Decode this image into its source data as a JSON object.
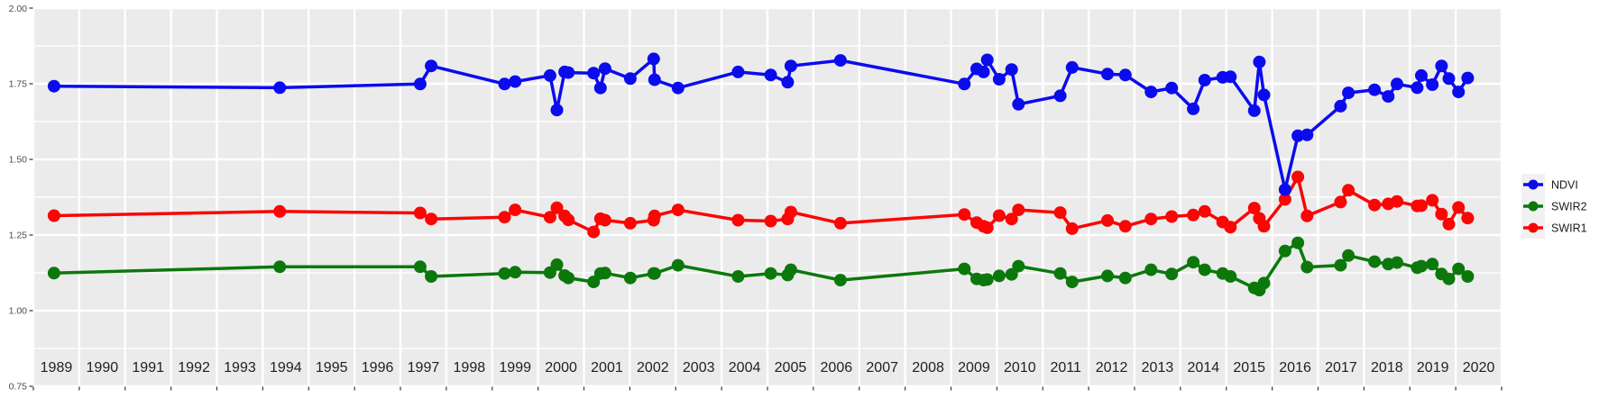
{
  "figure": {
    "background": "#ffffff",
    "panel_background": "#ebebeb",
    "grid_major_color": "#ffffff",
    "grid_minor_color": "#ffffff",
    "tick_color": "#333333",
    "axis_text_color": "#4d4d4d",
    "year_text_color": "#1f1f1f",
    "legend_key_background": "#f1f1f1",
    "legend_text_color": "#1a1a1a"
  },
  "axes": {
    "y_tick_labels": [
      "0.75",
      "1.00",
      "1.25",
      "1.50",
      "1.75",
      "2.00"
    ],
    "y_tick_values": [
      0.75,
      1.0,
      1.25,
      1.5,
      1.75,
      2.0
    ],
    "y_minor_values": [
      0.875,
      1.125,
      1.375,
      1.625,
      1.875
    ],
    "x_year_labels": [
      "1989",
      "1990",
      "1991",
      "1992",
      "1993",
      "1994",
      "1995",
      "1996",
      "1997",
      "1998",
      "1999",
      "2000",
      "2001",
      "2002",
      "2003",
      "2004",
      "2005",
      "2006",
      "2007",
      "2008",
      "2009",
      "2010",
      "2011",
      "2012",
      "2013",
      "2014",
      "2015",
      "2016",
      "2017",
      "2018",
      "2019",
      "2020"
    ]
  },
  "legend": {
    "items": [
      {
        "label": "NDVI",
        "color": "#0b0bef"
      },
      {
        "label": "SWIR2",
        "color": "#0c780c"
      },
      {
        "label": "SWIR1",
        "color": "#fb0505"
      }
    ]
  },
  "chart_data": {
    "type": "line",
    "title": "",
    "xlabel": "",
    "ylabel": "",
    "xlim": [
      1989,
      2021
    ],
    "ylim": [
      0.75,
      2.0
    ],
    "grid": true,
    "legend_position": "right",
    "draw_order": [
      "SWIR2",
      "SWIR1",
      "NDVI"
    ],
    "x": [
      1989.45,
      1994.37,
      1997.43,
      1997.67,
      1999.27,
      1999.5,
      2000.26,
      2000.41,
      2000.58,
      2000.66,
      2001.21,
      2001.36,
      2001.46,
      2002.01,
      2002.52,
      2002.54,
      2003.05,
      2004.36,
      2005.07,
      2005.44,
      2005.51,
      2006.59,
      2009.29,
      2009.56,
      2009.71,
      2009.79,
      2010.05,
      2010.32,
      2010.47,
      2011.38,
      2011.64,
      2012.41,
      2012.8,
      2013.36,
      2013.81,
      2014.28,
      2014.53,
      2014.92,
      2015.09,
      2015.61,
      2015.72,
      2015.82,
      2016.28,
      2016.56,
      2016.76,
      2017.49,
      2017.66,
      2018.23,
      2018.53,
      2018.72,
      2019.16,
      2019.25,
      2019.49,
      2019.69,
      2019.85,
      2020.06,
      2020.26
    ],
    "series": [
      {
        "name": "NDVI",
        "color": "#0b0bef",
        "values": [
          1.742,
          1.737,
          1.749,
          1.809,
          1.749,
          1.757,
          1.777,
          1.663,
          1.789,
          1.787,
          1.785,
          1.736,
          1.8,
          1.767,
          1.832,
          1.763,
          1.736,
          1.789,
          1.779,
          1.755,
          1.809,
          1.827,
          1.749,
          1.799,
          1.789,
          1.829,
          1.765,
          1.797,
          1.682,
          1.71,
          1.804,
          1.782,
          1.779,
          1.723,
          1.736,
          1.667,
          1.762,
          1.771,
          1.773,
          1.661,
          1.822,
          1.713,
          1.4,
          1.578,
          1.581,
          1.676,
          1.72,
          1.73,
          1.708,
          1.749,
          1.737,
          1.777,
          1.747,
          1.809,
          1.767,
          1.723,
          1.769
        ]
      },
      {
        "name": "SWIR2",
        "color": "#0c780c",
        "values": [
          1.124,
          1.145,
          1.145,
          1.113,
          1.123,
          1.127,
          1.126,
          1.152,
          1.116,
          1.108,
          1.095,
          1.123,
          1.124,
          1.108,
          1.123,
          1.123,
          1.15,
          1.113,
          1.123,
          1.118,
          1.135,
          1.101,
          1.138,
          1.105,
          1.101,
          1.103,
          1.115,
          1.12,
          1.147,
          1.123,
          1.095,
          1.115,
          1.108,
          1.135,
          1.121,
          1.16,
          1.135,
          1.123,
          1.113,
          1.075,
          1.068,
          1.091,
          1.197,
          1.224,
          1.144,
          1.15,
          1.182,
          1.162,
          1.154,
          1.159,
          1.142,
          1.147,
          1.154,
          1.121,
          1.105,
          1.138,
          1.113
        ]
      },
      {
        "name": "SWIR1",
        "color": "#fb0505",
        "values": [
          1.314,
          1.328,
          1.323,
          1.303,
          1.309,
          1.333,
          1.309,
          1.34,
          1.313,
          1.3,
          1.26,
          1.304,
          1.299,
          1.289,
          1.299,
          1.313,
          1.333,
          1.299,
          1.296,
          1.303,
          1.326,
          1.289,
          1.318,
          1.291,
          1.279,
          1.274,
          1.314,
          1.303,
          1.333,
          1.324,
          1.271,
          1.298,
          1.279,
          1.303,
          1.311,
          1.316,
          1.328,
          1.293,
          1.276,
          1.339,
          1.305,
          1.279,
          1.368,
          1.442,
          1.313,
          1.359,
          1.398,
          1.349,
          1.353,
          1.361,
          1.346,
          1.347,
          1.365,
          1.319,
          1.286,
          1.341,
          1.306
        ]
      }
    ]
  }
}
